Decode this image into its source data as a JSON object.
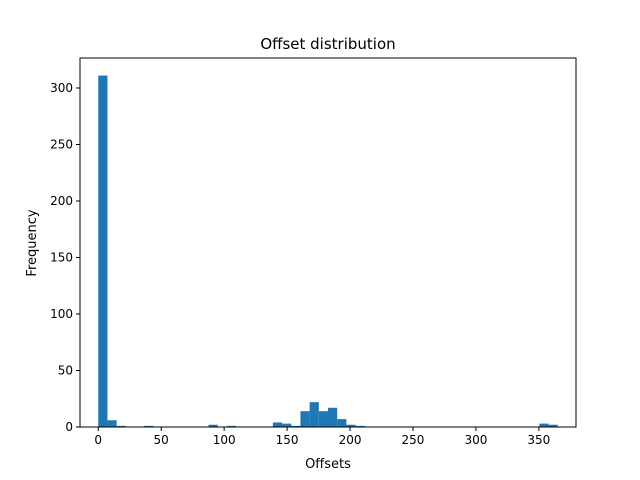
{
  "chart_data": {
    "type": "bar",
    "title": "Offset distribution",
    "xlabel": "Offsets",
    "ylabel": "Frequency",
    "xlim": [
      -14.5,
      379.5
    ],
    "ylim": [
      0,
      326.55
    ],
    "xticks": [
      0,
      50,
      100,
      150,
      200,
      250,
      300,
      350
    ],
    "yticks": [
      0,
      50,
      100,
      150,
      200,
      250,
      300
    ],
    "bar_color": "#1f77b4",
    "bins": {
      "start": 0,
      "width": 7.3,
      "counts": [
        311,
        6,
        1,
        0,
        0,
        1,
        0,
        0,
        0,
        0,
        0,
        0,
        2,
        0,
        1,
        0,
        0,
        0,
        0,
        4,
        3,
        1,
        14,
        22,
        14,
        17,
        7,
        2,
        1,
        0,
        0,
        0,
        0,
        0,
        0,
        0,
        0,
        0,
        0,
        0,
        0,
        0,
        0,
        0,
        0,
        0,
        0,
        0,
        3,
        2
      ]
    }
  }
}
